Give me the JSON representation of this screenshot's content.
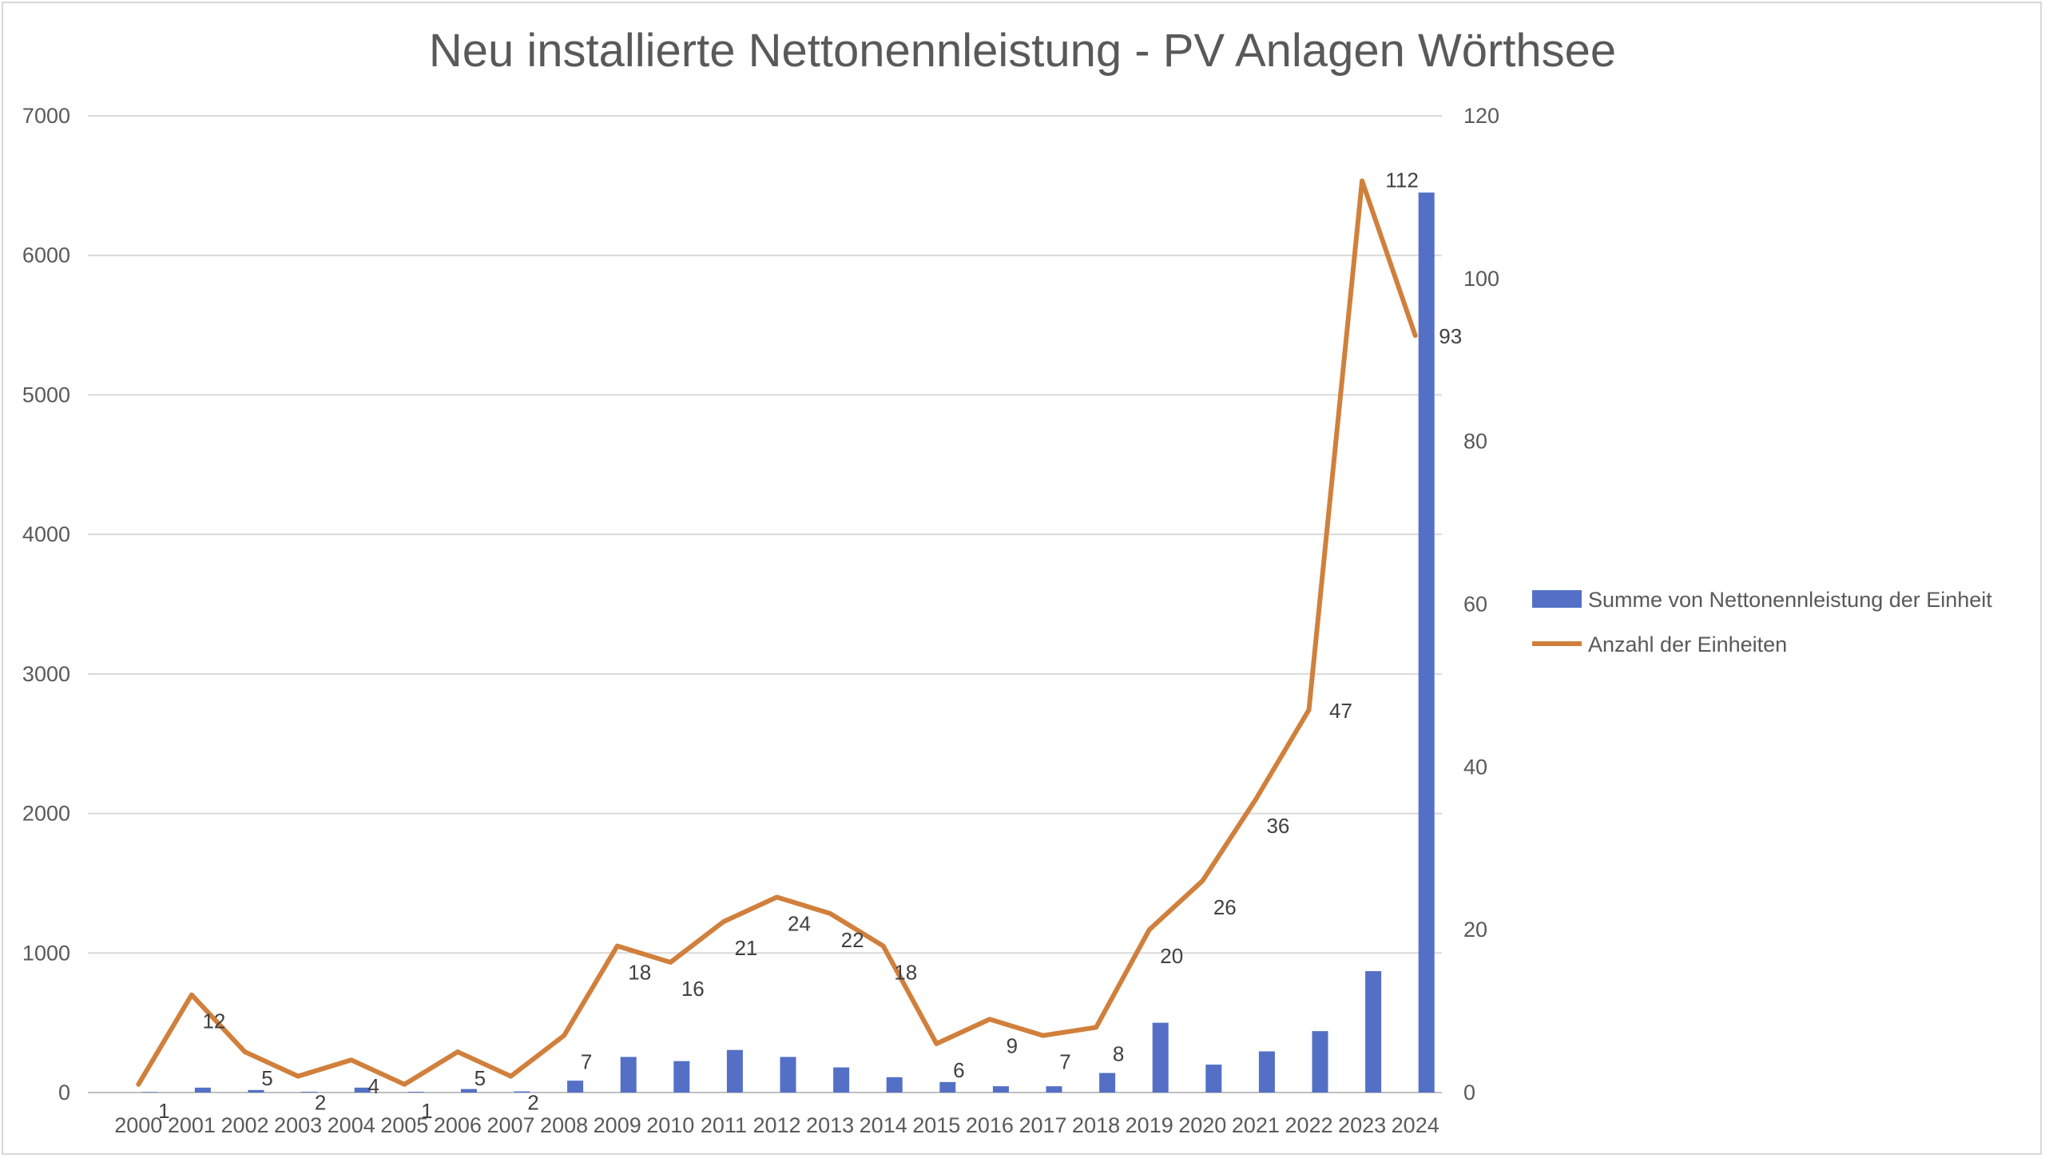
{
  "chart_data": {
    "type": "bar",
    "title": "Neu installierte Nettonennleistung - PV Anlagen Wörthsee",
    "categories": [
      "2000",
      "2001",
      "2002",
      "2003",
      "2004",
      "2005",
      "2006",
      "2007",
      "2008",
      "2009",
      "2010",
      "2011",
      "2012",
      "2013",
      "2014",
      "2015",
      "2016",
      "2017",
      "2018",
      "2019",
      "2020",
      "2021",
      "2022",
      "2023",
      "2024"
    ],
    "series": [
      {
        "name": "Summe von Nettonennleistung der Einheit",
        "type": "bar",
        "axis": "left",
        "color": "#5470c6",
        "values": [
          3,
          35,
          18,
          5,
          35,
          5,
          25,
          8,
          85,
          255,
          225,
          305,
          255,
          180,
          110,
          75,
          45,
          45,
          140,
          500,
          200,
          295,
          440,
          870,
          6450
        ]
      },
      {
        "name": "Anzahl der Einheiten",
        "type": "line",
        "axis": "right",
        "color": "#d0803c",
        "values": [
          1,
          12,
          5,
          2,
          4,
          1,
          5,
          2,
          7,
          18,
          16,
          21,
          24,
          22,
          18,
          6,
          9,
          7,
          8,
          20,
          26,
          36,
          47,
          112,
          93
        ]
      }
    ],
    "y_left": {
      "min": 0,
      "max": 7000,
      "ticks": [
        "0",
        "1000",
        "2000",
        "3000",
        "4000",
        "5000",
        "6000",
        "7000"
      ]
    },
    "y_right": {
      "min": 0,
      "max": 120,
      "ticks": [
        "0",
        "20",
        "40",
        "60",
        "80",
        "100",
        "120"
      ]
    },
    "grid": true,
    "legend_position": "right"
  }
}
